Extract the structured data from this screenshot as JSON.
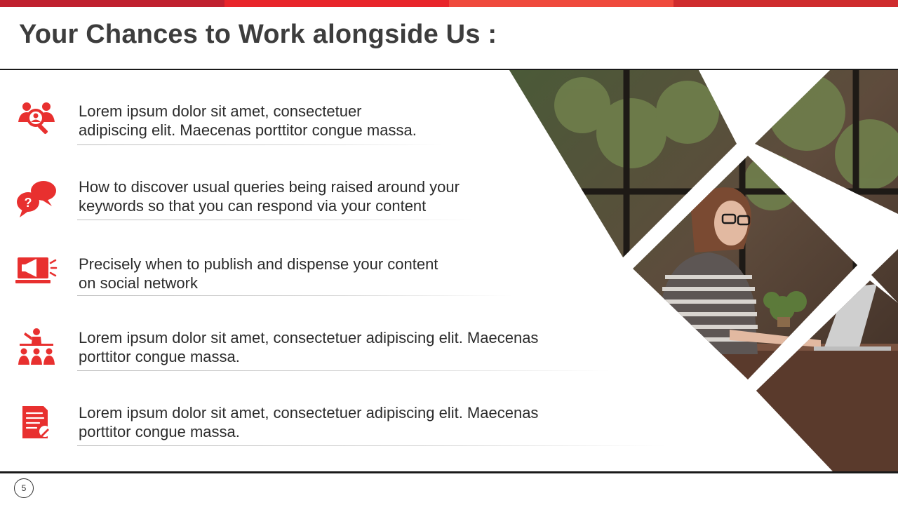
{
  "colors": {
    "accent": "#e8302f",
    "topbar": [
      "#c0212f",
      "#e8252a",
      "#ef4a3c",
      "#cf2c2e"
    ],
    "title": "#3d3d3d"
  },
  "title": "Your Chances to Work alongside Us :",
  "items": [
    {
      "icon": "team-search-icon",
      "text": "Lorem ipsum dolor sit amet, consectetuer\nadipiscing elit. Maecenas porttitor congue massa."
    },
    {
      "icon": "speech-bubbles-question-icon",
      "text": "How to discover usual queries being raised around your\nkeywords so that you can respond via your content"
    },
    {
      "icon": "megaphone-laptop-icon",
      "text": "Precisely when to publish and dispense your content\non social network"
    },
    {
      "icon": "presenter-audience-icon",
      "text": "Lorem ipsum dolor sit amet, consectetuer adipiscing elit. Maecenas\nporttitor congue massa."
    },
    {
      "icon": "document-edit-icon",
      "text": "Lorem ipsum dolor sit amet, consectetuer adipiscing elit. Maecenas\nporttitor congue massa."
    }
  ],
  "page_number": "5"
}
